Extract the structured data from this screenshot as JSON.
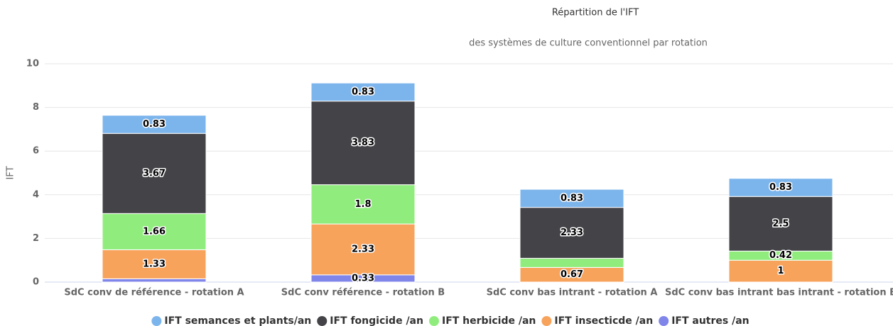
{
  "chart_data": {
    "type": "stacked_bar",
    "title": "Répartition de l'IFT",
    "subtitle": "des systèmes de culture conventionnel par rotation",
    "y_label": "IFT",
    "categories": [
      "SdC conv de référence - rotation A",
      "SdC conv référence - rotation B",
      "SdC conv bas intrant - rotation A",
      "SdC conv bas intrant bas intrant - rotation B"
    ],
    "series": [
      {
        "name": "IFT semances et plants/an",
        "color": "#7cb5ec",
        "values": [
          0.83,
          0.83,
          0.83,
          0.83
        ]
      },
      {
        "name": "IFT fongicide /an",
        "color": "#434348",
        "values": [
          3.67,
          3.83,
          2.33,
          2.5
        ]
      },
      {
        "name": "IFT herbicide /an",
        "color": "#90ed7d",
        "values": [
          1.66,
          1.8,
          0.42,
          0.42
        ],
        "value_labels": [
          "1.66",
          "1.8",
          null,
          "0.42"
        ]
      },
      {
        "name": "IFT insecticde /an",
        "color": "#f7a35c",
        "values": [
          1.33,
          2.33,
          0.67,
          1
        ]
      },
      {
        "name": "IFT autres /an",
        "color": "#8085e9",
        "values": [
          0.15,
          0.33,
          null,
          null
        ],
        "value_labels": [
          null,
          "0.33",
          null,
          null
        ]
      }
    ],
    "ylim": [
      0,
      10
    ],
    "yticks": [
      0,
      2,
      4,
      6,
      8,
      10
    ],
    "grid": true
  }
}
